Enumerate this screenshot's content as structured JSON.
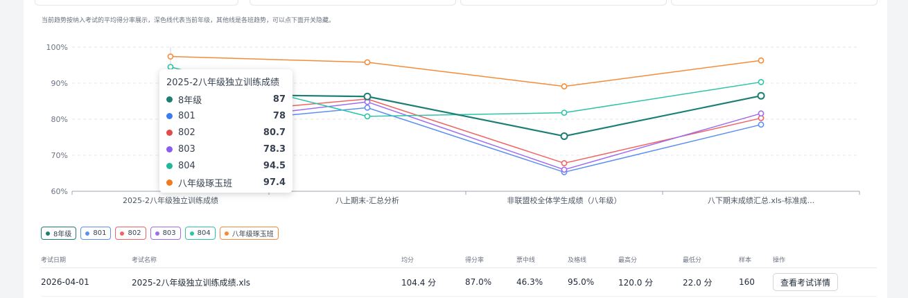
{
  "note": "当前趋势按纳入考试的平均得分率展示，深色线代表当前年级，其他线是各班趋势，可以点下面开关隐藏。",
  "chart_data": {
    "type": "line",
    "categories": [
      "2025-2八年级独立训练成绩",
      "八上期末-汇总分析",
      "非联盟校全体学生成绩（八年级）",
      "八下期末成绩汇总.xls-标准成..."
    ],
    "y_ticks": [
      "100%",
      "90%",
      "80%",
      "70%",
      "60%"
    ],
    "ylim": [
      60,
      100
    ],
    "grid": true,
    "series": [
      {
        "name": "8年级",
        "color": "#1d7f74",
        "width": 2.2,
        "values": [
          87,
          86.3,
          75.3,
          86.5
        ]
      },
      {
        "name": "801",
        "color": "#5b8ff0",
        "width": 1.5,
        "values": [
          78,
          83.2,
          65.3,
          78.5
        ]
      },
      {
        "name": "802",
        "color": "#ef6461",
        "width": 1.5,
        "values": [
          80.7,
          85.6,
          67.8,
          80.3
        ]
      },
      {
        "name": "803",
        "color": "#9d6cf0",
        "width": 1.5,
        "values": [
          78.3,
          84.8,
          66,
          81.6
        ]
      },
      {
        "name": "804",
        "color": "#2cc3a9",
        "width": 1.5,
        "values": [
          94.5,
          80.8,
          81.8,
          90.3
        ]
      },
      {
        "name": "八年级琢玉班",
        "color": "#f58b36",
        "width": 1.5,
        "values": [
          97.4,
          95.8,
          89.1,
          96.3
        ]
      }
    ],
    "tooltip": {
      "title": "2025-2八年级独立训练成绩",
      "rows": [
        {
          "name": "8年级",
          "value": "87",
          "color": "#1d7f74"
        },
        {
          "name": "801",
          "value": "78",
          "color": "#3b7cf0"
        },
        {
          "name": "802",
          "value": "80.7",
          "color": "#e44a4a"
        },
        {
          "name": "803",
          "value": "78.3",
          "color": "#8b5cf0"
        },
        {
          "name": "804",
          "value": "94.5",
          "color": "#1fb89c"
        },
        {
          "name": "八年级琢玉班",
          "value": "97.4",
          "color": "#f07a20"
        }
      ]
    }
  },
  "legend": [
    {
      "label": "8年级",
      "color": "#1d7f74"
    },
    {
      "label": "801",
      "color": "#5b8ff0"
    },
    {
      "label": "802",
      "color": "#ef6461"
    },
    {
      "label": "803",
      "color": "#9d6cf0"
    },
    {
      "label": "804",
      "color": "#2cc3a9"
    },
    {
      "label": "八年级琢玉班",
      "color": "#f58b36"
    }
  ],
  "table": {
    "headers": {
      "date": "考试日期",
      "name": "考试名称",
      "avg": "均分",
      "rate": "得分率",
      "excellent": "票中线",
      "pass": "及格线",
      "max": "最高分",
      "min": "最低分",
      "sample": "样本",
      "action": "操作"
    },
    "rows": [
      {
        "date": "2026-04-01",
        "name": "2025-2八年级独立训练成绩.xls",
        "avg": "104.4 分",
        "rate": "87.0%",
        "excellent": "46.3%",
        "pass": "95.0%",
        "max": "120.0 分",
        "min": "22.0 分",
        "sample": "160",
        "action": "查看考试详情"
      }
    ]
  }
}
